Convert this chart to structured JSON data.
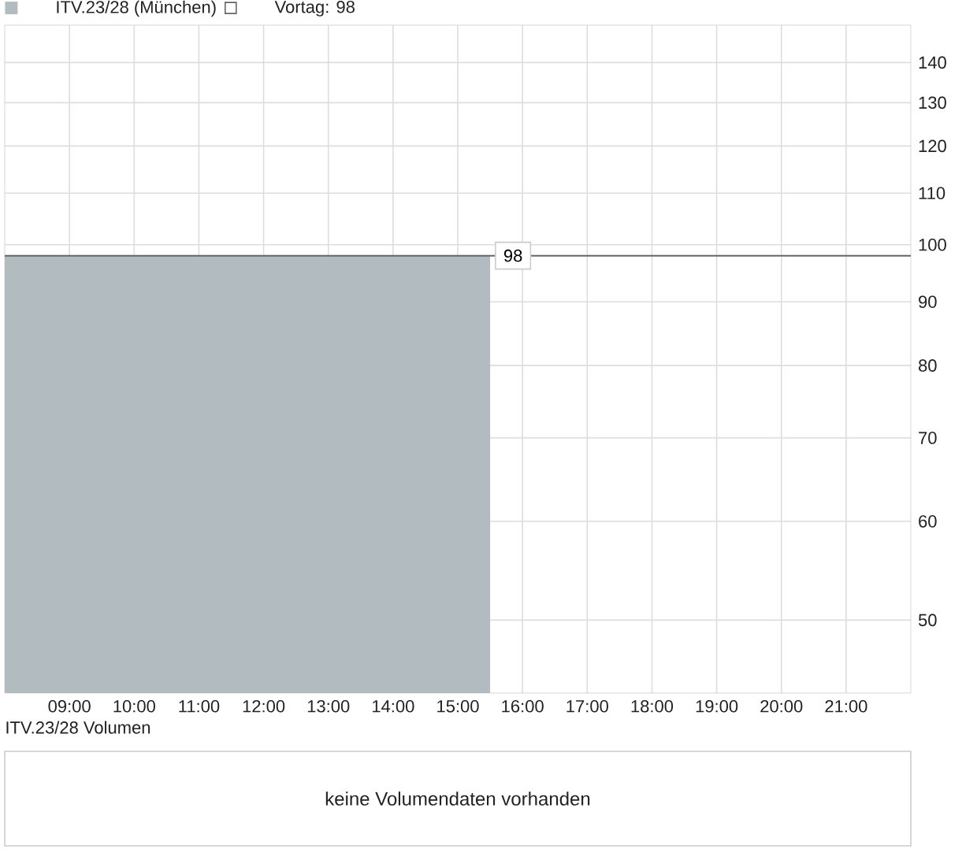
{
  "chart_data": [
    {
      "type": "area",
      "x": [
        8,
        15.5
      ],
      "series": [
        {
          "name": "ITV.23/28 (München)",
          "color": "#b2bbc0",
          "values": [
            98,
            98
          ]
        }
      ],
      "xlim": [
        8,
        22
      ],
      "xticks": [
        {
          "value": 9,
          "label": "09:00"
        },
        {
          "value": 10,
          "label": "10:00"
        },
        {
          "value": 11,
          "label": "11:00"
        },
        {
          "value": 12,
          "label": "12:00"
        },
        {
          "value": 13,
          "label": "13:00"
        },
        {
          "value": 14,
          "label": "14:00"
        },
        {
          "value": 15,
          "label": "15:00"
        },
        {
          "value": 16,
          "label": "16:00"
        },
        {
          "value": 17,
          "label": "17:00"
        },
        {
          "value": 18,
          "label": "18:00"
        },
        {
          "value": 19,
          "label": "19:00"
        },
        {
          "value": 20,
          "label": "20:00"
        },
        {
          "value": 21,
          "label": "21:00"
        }
      ],
      "ylim": [
        43.7,
        150
      ],
      "yticks": [
        50,
        60,
        70,
        80,
        90,
        100,
        110,
        120,
        130,
        140
      ],
      "log": "y",
      "grid": true,
      "legend": "top left",
      "ref_lines": [
        {
          "axis": "y",
          "value": 98,
          "label": "Vortag: 98",
          "color": "#666666"
        }
      ],
      "annotations": [
        {
          "text": "98",
          "x": 15.5,
          "y": 98
        }
      ]
    },
    {
      "type": "other",
      "title": "ITV.23/28 Volumen",
      "annotations": [
        "keine Volumendaten vorhanden"
      ]
    }
  ]
}
